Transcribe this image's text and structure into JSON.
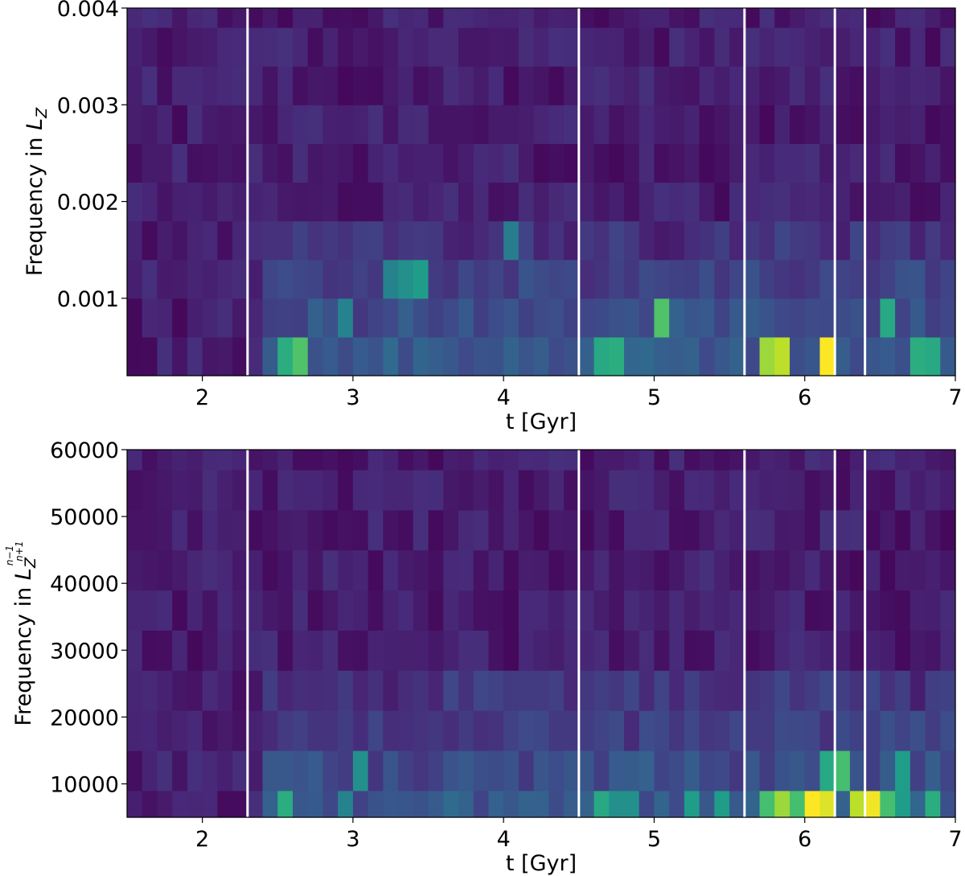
{
  "chart_data": [
    {
      "type": "heatmap",
      "xlabel": "t [Gyr]",
      "ylabel_prefix": "Frequency in ",
      "ylabel_symbol": "L",
      "ylabel_subscript": "Z",
      "xlim": [
        1.5,
        7.0
      ],
      "ylim": [
        0.0002,
        0.004
      ],
      "x_ticks": [
        2,
        3,
        4,
        5,
        6,
        7
      ],
      "x_tick_labels": [
        "2",
        "3",
        "4",
        "5",
        "6",
        "7"
      ],
      "y_ticks": [
        0.001,
        0.002,
        0.003,
        0.004
      ],
      "y_tick_labels": [
        "0.001",
        "0.002",
        "0.003",
        "0.004"
      ],
      "x_bin_width": 0.1,
      "y_bin_edges": [
        0.0002,
        0.0006,
        0.001,
        0.0014,
        0.0018,
        0.0022,
        0.0026,
        0.003,
        0.0034,
        0.0038,
        0.004
      ],
      "colormap": "viridis",
      "vlines": [
        2.3,
        4.5,
        5.6,
        6.2,
        6.4
      ],
      "vline_color": "#ffffff",
      "bright_cells": [
        {
          "t": 2.5,
          "bin": 0,
          "v": 0.62
        },
        {
          "t": 2.6,
          "bin": 0,
          "v": 0.72
        },
        {
          "t": 3.2,
          "bin": 2,
          "v": 0.45
        },
        {
          "t": 3.3,
          "bin": 2,
          "v": 0.5
        },
        {
          "t": 3.4,
          "bin": 2,
          "v": 0.55
        },
        {
          "t": 2.9,
          "bin": 1,
          "v": 0.45
        },
        {
          "t": 4.0,
          "bin": 3,
          "v": 0.42
        },
        {
          "t": 4.6,
          "bin": 0,
          "v": 0.6
        },
        {
          "t": 4.7,
          "bin": 0,
          "v": 0.62
        },
        {
          "t": 5.0,
          "bin": 1,
          "v": 0.72
        },
        {
          "t": 5.7,
          "bin": 0,
          "v": 0.85
        },
        {
          "t": 5.8,
          "bin": 0,
          "v": 0.9
        },
        {
          "t": 6.1,
          "bin": 0,
          "v": 1.0
        },
        {
          "t": 6.5,
          "bin": 1,
          "v": 0.6
        },
        {
          "t": 6.7,
          "bin": 0,
          "v": 0.62
        },
        {
          "t": 6.8,
          "bin": 0,
          "v": 0.6
        }
      ]
    },
    {
      "type": "heatmap",
      "xlabel": "t [Gyr]",
      "ylabel_prefix": "Frequency in ",
      "ylabel_symbol": "L",
      "ylabel_subscript": "Z",
      "ylabel_exp_num": "n−1",
      "ylabel_exp_den": "n+1",
      "xlim": [
        1.5,
        7.0
      ],
      "ylim": [
        5000,
        60000
      ],
      "x_ticks": [
        2,
        3,
        4,
        5,
        6,
        7
      ],
      "x_tick_labels": [
        "2",
        "3",
        "4",
        "5",
        "6",
        "7"
      ],
      "y_ticks": [
        10000,
        20000,
        30000,
        40000,
        50000,
        60000
      ],
      "y_tick_labels": [
        "10000",
        "20000",
        "30000",
        "40000",
        "50000",
        "60000"
      ],
      "x_bin_width": 0.1,
      "y_bin_edges": [
        5000,
        9000,
        15000,
        21000,
        27000,
        33000,
        39000,
        45000,
        51000,
        57000,
        60000
      ],
      "colormap": "viridis",
      "vlines": [
        2.3,
        4.5,
        5.6,
        6.2,
        6.4
      ],
      "vline_color": "#ffffff",
      "bright_cells": [
        {
          "t": 2.5,
          "bin": 0,
          "v": 0.62
        },
        {
          "t": 3.0,
          "bin": 1,
          "v": 0.5
        },
        {
          "t": 2.9,
          "bin": 0,
          "v": 0.45
        },
        {
          "t": 4.6,
          "bin": 0,
          "v": 0.6
        },
        {
          "t": 4.7,
          "bin": 0,
          "v": 0.5
        },
        {
          "t": 4.8,
          "bin": 0,
          "v": 0.5
        },
        {
          "t": 5.2,
          "bin": 0,
          "v": 0.55
        },
        {
          "t": 5.4,
          "bin": 0,
          "v": 0.55
        },
        {
          "t": 5.7,
          "bin": 0,
          "v": 0.7
        },
        {
          "t": 5.8,
          "bin": 0,
          "v": 0.85
        },
        {
          "t": 5.9,
          "bin": 0,
          "v": 0.7
        },
        {
          "t": 6.0,
          "bin": 0,
          "v": 1.0
        },
        {
          "t": 6.1,
          "bin": 0,
          "v": 0.95
        },
        {
          "t": 6.1,
          "bin": 1,
          "v": 0.6
        },
        {
          "t": 6.2,
          "bin": 1,
          "v": 0.7
        },
        {
          "t": 6.3,
          "bin": 0,
          "v": 0.9
        },
        {
          "t": 6.4,
          "bin": 0,
          "v": 0.98
        },
        {
          "t": 6.5,
          "bin": 0,
          "v": 0.7
        },
        {
          "t": 6.6,
          "bin": 0,
          "v": 0.55
        },
        {
          "t": 6.6,
          "bin": 1,
          "v": 0.55
        },
        {
          "t": 6.8,
          "bin": 0,
          "v": 0.62
        }
      ]
    }
  ]
}
